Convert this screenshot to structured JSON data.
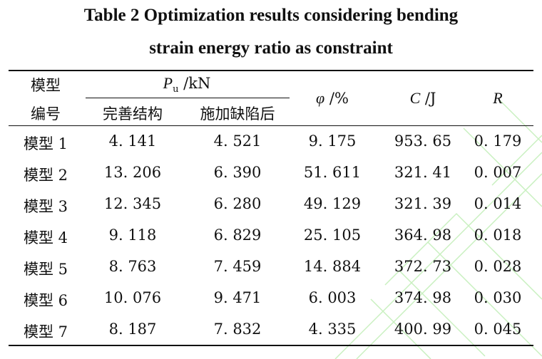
{
  "title": {
    "line1": "Table 2    Optimization results considering bending",
    "line2": "strain energy ratio as constraint"
  },
  "header": {
    "model_id_l1": "模型",
    "model_id_l2": "编号",
    "pu_symbol": "P",
    "pu_sub": "u",
    "pu_unit": " /kN",
    "perfect": "完善结构",
    "defect": "施加缺陷后",
    "phi_symbol": "φ",
    "phi_unit": " /%",
    "c_symbol": "C",
    "c_unit": " /J",
    "r_symbol": "R"
  },
  "rows": [
    {
      "model": "模型 1",
      "perfect": "4. 141",
      "defect": "4. 521",
      "phi": "9. 175",
      "c": "953. 65",
      "r": "0. 179"
    },
    {
      "model": "模型 2",
      "perfect": "13. 206",
      "defect": "6. 390",
      "phi": "51. 611",
      "c": "321. 41",
      "r": "0. 007"
    },
    {
      "model": "模型 3",
      "perfect": "12. 345",
      "defect": "6. 280",
      "phi": "49. 129",
      "c": "321. 39",
      "r": "0. 014"
    },
    {
      "model": "模型 4",
      "perfect": "9. 118",
      "defect": "6. 829",
      "phi": "25. 105",
      "c": "364. 98",
      "r": "0. 018"
    },
    {
      "model": "模型 5",
      "perfect": "8. 763",
      "defect": "7. 459",
      "phi": "14. 884",
      "c": "372. 73",
      "r": "0. 028"
    },
    {
      "model": "模型 6",
      "perfect": "10. 076",
      "defect": "9. 471",
      "phi": "6. 003",
      "c": "374. 98",
      "r": "0. 030"
    },
    {
      "model": "模型 7",
      "perfect": "8. 187",
      "defect": "7. 832",
      "phi": "4. 335",
      "c": "400. 99",
      "r": "0. 045"
    }
  ],
  "colors": {
    "text": "#111111",
    "watermark": "#c9f0c0"
  }
}
